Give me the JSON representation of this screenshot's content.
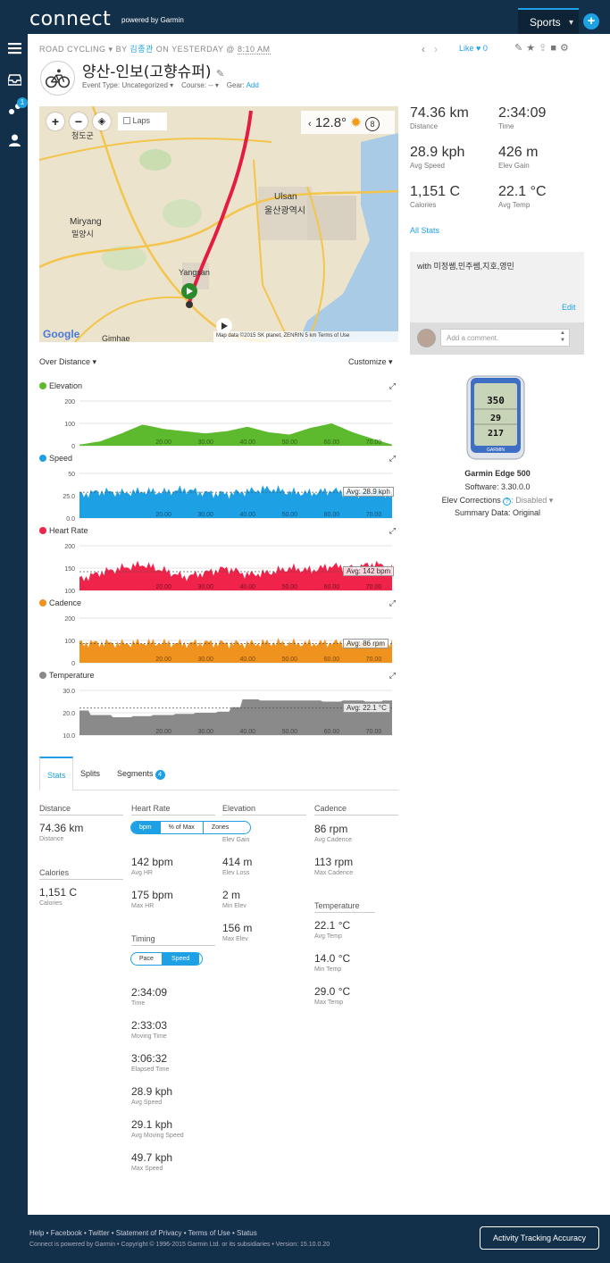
{
  "app": {
    "logo": "connect",
    "logo_sub": "powered by Garmin",
    "sports": "Sports",
    "plus": "+",
    "notifications_badge": "1"
  },
  "header": {
    "activity_type": "ROAD CYCLING",
    "by": "BY",
    "author": "김종관",
    "on": "ON YESTERDAY @",
    "time": "8:10 AM",
    "like": "Like",
    "like_count": "0",
    "title": "양산-인보(고향슈퍼)",
    "event_type": "Event Type: Uncategorized",
    "course": "Course: --",
    "gear_label": "Gear:",
    "gear_add": "Add"
  },
  "map": {
    "laps": "Laps",
    "temp": "12.8°",
    "weather_badge": "8",
    "labels": {
      "cheongdo": "청도군",
      "miryang": "Miryang",
      "miryang_ko": "밀양시",
      "ulsan": "Ulsan",
      "ulsan_ko": "울산광역시",
      "yangsan": "Yangsan",
      "gimhae": "Gimhae"
    },
    "google": "Google",
    "footer": "Map data ©2015 SK planet, ZENRIN   5 km        Terms of Use"
  },
  "chart_controls": {
    "over": "Over Distance ▾",
    "customize": "Customize ▾"
  },
  "charts": [
    {
      "key": "elev",
      "title": "Elevation",
      "color": "#5dba2f",
      "yticks": [
        "200",
        "100",
        "0"
      ],
      "avg": ""
    },
    {
      "key": "speed",
      "title": "Speed",
      "color": "#1ea0e5",
      "yticks": [
        "50",
        "25.0",
        "0.0"
      ],
      "avg": "Avg: 28.9 kph"
    },
    {
      "key": "hr",
      "title": "Heart Rate",
      "color": "#f0234a",
      "yticks": [
        "200",
        "150",
        "100"
      ],
      "avg": "Avg: 142 bpm"
    },
    {
      "key": "cad",
      "title": "Cadence",
      "color": "#f0921e",
      "yticks": [
        "200",
        "100",
        "0"
      ],
      "avg": "Avg: 86 rpm"
    },
    {
      "key": "temp",
      "title": "Temperature",
      "color": "#8a8a8a",
      "yticks": [
        "30.0",
        "20.0",
        "10.0"
      ],
      "avg": "Avg: 22.1 °C"
    }
  ],
  "chart_data": [
    {
      "type": "area",
      "title": "Elevation",
      "x": [
        0,
        5,
        10,
        15,
        20,
        25,
        30,
        35,
        40,
        45,
        50,
        55,
        60,
        65,
        70,
        74.36
      ],
      "values": [
        5,
        20,
        55,
        95,
        75,
        65,
        55,
        65,
        85,
        60,
        50,
        80,
        100,
        60,
        30,
        5
      ],
      "ylim": [
        0,
        200
      ],
      "xticks": [
        "20.00",
        "30.00",
        "40.00",
        "50.00",
        "60.00",
        "70.00"
      ]
    },
    {
      "type": "area",
      "title": "Speed",
      "x": [
        0,
        5,
        10,
        15,
        20,
        25,
        30,
        35,
        40,
        45,
        50,
        55,
        60,
        65,
        70,
        74.36
      ],
      "values": [
        26,
        30,
        28,
        30,
        29,
        32,
        28,
        27,
        30,
        33,
        29,
        28,
        31,
        27,
        30,
        26
      ],
      "ylim": [
        0,
        50
      ],
      "avg": 28.9,
      "xticks": [
        "20.00",
        "30.00",
        "40.00",
        "50.00",
        "60.00",
        "70.00"
      ]
    },
    {
      "type": "area",
      "title": "Heart Rate",
      "x": [
        0,
        5,
        10,
        15,
        20,
        25,
        30,
        35,
        40,
        45,
        50,
        55,
        60,
        65,
        70,
        74.36
      ],
      "values": [
        125,
        140,
        150,
        158,
        145,
        130,
        140,
        150,
        135,
        140,
        150,
        145,
        155,
        150,
        160,
        150
      ],
      "ylim": [
        100,
        200
      ],
      "avg": 142,
      "xticks": [
        "20.00",
        "30.00",
        "40.00",
        "50.00",
        "60.00",
        "70.00"
      ]
    },
    {
      "type": "area",
      "title": "Cadence",
      "x": [
        0,
        5,
        10,
        15,
        20,
        25,
        30,
        35,
        40,
        45,
        50,
        55,
        60,
        65,
        70,
        74.36
      ],
      "values": [
        88,
        90,
        85,
        90,
        88,
        86,
        90,
        87,
        85,
        90,
        88,
        86,
        90,
        87,
        85,
        86
      ],
      "ylim": [
        0,
        200
      ],
      "avg": 86,
      "xticks": [
        "20.00",
        "30.00",
        "40.00",
        "50.00",
        "60.00",
        "70.00"
      ]
    },
    {
      "type": "area",
      "title": "Temperature",
      "x": [
        0,
        5,
        10,
        15,
        20,
        25,
        30,
        35,
        37,
        40,
        45,
        50,
        55,
        60,
        65,
        70,
        74.36
      ],
      "values": [
        21,
        19,
        18,
        18.5,
        19,
        19.5,
        20,
        20.5,
        22.5,
        26,
        25.5,
        25.5,
        25.5,
        25,
        25.5,
        25,
        25.5
      ],
      "ylim": [
        10,
        30
      ],
      "avg": 22.1,
      "xticks": [
        "20.00",
        "30.00",
        "40.00",
        "50.00",
        "60.00",
        "70.00"
      ]
    }
  ],
  "summary": {
    "distance": "74.36 km",
    "distance_l": "Distance",
    "time": "2:34:09",
    "time_l": "Time",
    "avg_speed": "28.9 kph",
    "avg_speed_l": "Avg Speed",
    "elev_gain": "426 m",
    "elev_gain_l": "Elev Gain",
    "calories": "1,151 C",
    "calories_l": "Calories",
    "avg_temp": "22.1 °C",
    "avg_temp_l": "Avg Temp",
    "all_stats": "All Stats"
  },
  "comment": {
    "with": "with 미정쌤,민주쌤,지호,영민",
    "edit": "Edit",
    "placeholder": "Add a comment."
  },
  "device": {
    "name": "Garmin Edge 500",
    "software": "Software: 3.30.0.0",
    "elev_corr_label": "Elev Corrections",
    "elev_corr_value": "Disabled",
    "summary_data": "Summary Data: Original",
    "screen_values": [
      "350",
      "29",
      "217"
    ]
  },
  "tabs": {
    "stats": "Stats",
    "splits": "Splits",
    "segments": "Segments",
    "segments_count": "4"
  },
  "stats": {
    "distance_h": "Distance",
    "distance": "74.36 km",
    "distance_l": "Distance",
    "calories_h": "Calories",
    "calories": "1,151 C",
    "calories_l": "Calories",
    "hr_h": "Heart Rate",
    "hr_toggle": [
      "bpm",
      "% of Max",
      "Zones"
    ],
    "avg_hr": "142 bpm",
    "avg_hr_l": "Avg HR",
    "max_hr": "175 bpm",
    "max_hr_l": "Max HR",
    "timing_h": "Timing",
    "timing_toggle": [
      "Pace",
      "Speed"
    ],
    "time": "2:34:09",
    "time_l": "Time",
    "moving_time": "2:33:03",
    "moving_time_l": "Moving Time",
    "elapsed_time": "3:06:32",
    "elapsed_time_l": "Elapsed Time",
    "avg_speed": "28.9 kph",
    "avg_speed_l": "Avg Speed",
    "avg_moving_speed": "29.1 kph",
    "avg_moving_speed_l": "Avg Moving Speed",
    "max_speed": "49.7 kph",
    "max_speed_l": "Max Speed",
    "elev_h": "Elevation",
    "elev_gain_l": "Elev Gain",
    "elev_loss": "414 m",
    "elev_loss_l": "Elev Loss",
    "min_elev": "2 m",
    "min_elev_l": "Min Elev",
    "max_elev": "156 m",
    "max_elev_l": "Max Elev",
    "cad_h": "Cadence",
    "avg_cad": "86 rpm",
    "avg_cad_l": "Avg Cadence",
    "max_cad": "113 rpm",
    "max_cad_l": "Max Cadence",
    "temp_h": "Temperature",
    "avg_temp": "22.1 °C",
    "avg_temp_l": "Avg Temp",
    "min_temp": "14.0 °C",
    "min_temp_l": "Min Temp",
    "max_temp": "29.0 °C",
    "max_temp_l": "Max Temp"
  },
  "footer": {
    "links": "Help • Facebook • Twitter • Statement of Privacy • Terms of Use • Status",
    "copy": "Connect is powered by Garmin • Copyright © 1996-2015 Garmin Ltd. or its subsidiaries • Version: 15.10.0.20",
    "ata": "Activity Tracking Accuracy"
  }
}
